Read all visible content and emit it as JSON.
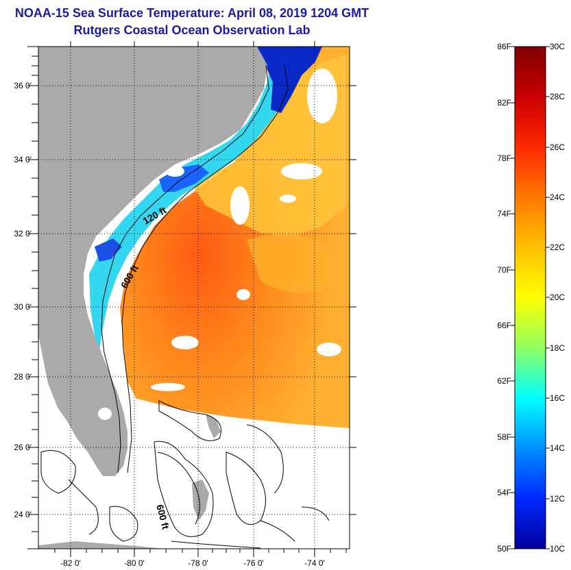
{
  "title": {
    "line1": "NOAA-15 Sea Surface Temperature:  April 08, 2019 1204 GMT",
    "line2": "Rutgers Coastal Ocean Observation Lab"
  },
  "map": {
    "lat_labels": [
      "36 0'",
      "34 0'",
      "32 0'",
      "30 0'",
      "28 0'",
      "26 0'",
      "24 0'"
    ],
    "lon_labels": [
      "-82 0'",
      "-80 0'",
      "-78 0'",
      "-76 0'",
      "-74 0'"
    ],
    "contour_labels": [
      "120 ft",
      "600 ft",
      "600 ft"
    ]
  },
  "colorbar": {
    "f_labels": [
      "86F",
      "82F",
      "78F",
      "74F",
      "70F",
      "66F",
      "62F",
      "58F",
      "54F",
      "50F"
    ],
    "c_labels": [
      "30C",
      "28C",
      "26C",
      "24C",
      "22C",
      "20C",
      "18C",
      "16C",
      "14C",
      "12C",
      "10C"
    ],
    "stops": [
      "#7f0000",
      "#c80000",
      "#ff2800",
      "#ff7800",
      "#ffc000",
      "#ffff00",
      "#90ff60",
      "#00ffff",
      "#0090ff",
      "#0028ff",
      "#00009a"
    ]
  },
  "colors": {
    "title": "#1a1aa6",
    "land": "#aaaaaa",
    "ocean_warm": "#ff8c1a",
    "ocean_hot": "#ff4a10",
    "ocean_shelf": "#ffc63a",
    "ocean_cold": "#1a64ff",
    "ocean_cyan": "#33d8f0",
    "no_data": "#ffffff"
  }
}
